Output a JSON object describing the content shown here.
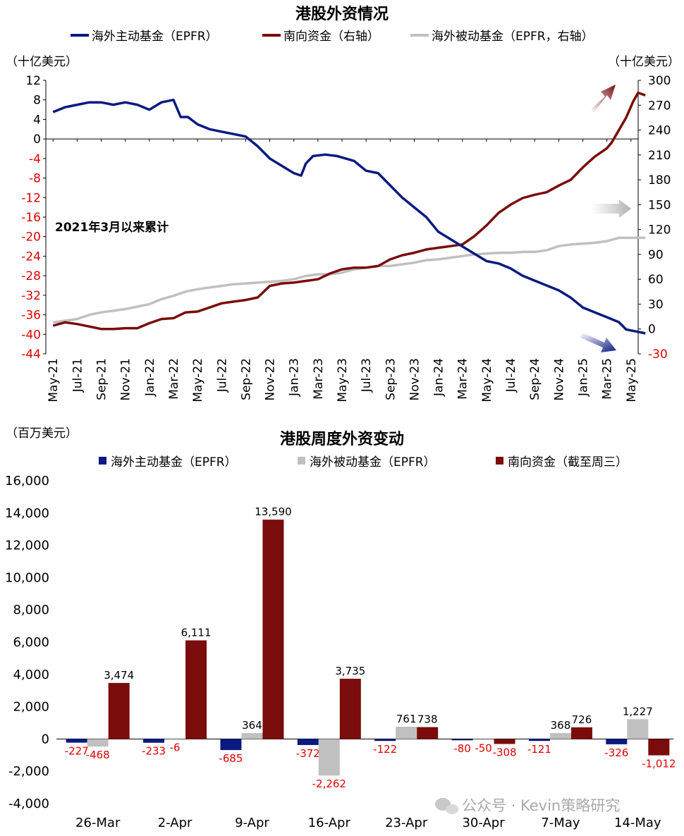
{
  "chart_data": [
    {
      "type": "line",
      "title": "港股外资情况",
      "left_unit": "（十亿美元）",
      "right_unit": "（十亿美元）",
      "annotation": "2021年3月以来累计",
      "left_ylim": [
        -44,
        12
      ],
      "left_ticks": [
        12,
        8,
        4,
        0,
        -4,
        -8,
        -12,
        -16,
        -20,
        -24,
        -28,
        -32,
        -36,
        -40,
        -44
      ],
      "right_ylim": [
        -30,
        300
      ],
      "right_ticks": [
        300,
        270,
        240,
        210,
        180,
        150,
        120,
        90,
        60,
        30,
        0,
        -30
      ],
      "x_labels": [
        "May-21",
        "Jul-21",
        "Sep-21",
        "Nov-21",
        "Jan-22",
        "Mar-22",
        "May-22",
        "Jul-22",
        "Sep-22",
        "Nov-22",
        "Jan-23",
        "Mar-23",
        "May-23",
        "Jul-23",
        "Sep-23",
        "Nov-23",
        "Jan-24",
        "Mar-24",
        "May-24",
        "Jul-24",
        "Sep-24",
        "Nov-24",
        "Jan-25",
        "Mar-25",
        "May-25"
      ],
      "series": [
        {
          "name": "海外主动基金（EPFR）",
          "axis": "left",
          "color": "#0a1a80",
          "points": [
            [
              0,
              5.5
            ],
            [
              0.5,
              6.5
            ],
            [
              1,
              7
            ],
            [
              1.5,
              7.5
            ],
            [
              2,
              7.5
            ],
            [
              2.5,
              7
            ],
            [
              3,
              7.5
            ],
            [
              3.5,
              7
            ],
            [
              4,
              6
            ],
            [
              4.5,
              7.5
            ],
            [
              5,
              8
            ],
            [
              5.3,
              4.5
            ],
            [
              5.6,
              4.5
            ],
            [
              6,
              3
            ],
            [
              6.5,
              2
            ],
            [
              7,
              1.5
            ],
            [
              7.5,
              1
            ],
            [
              8,
              0.5
            ],
            [
              8.5,
              -1.5
            ],
            [
              9,
              -4
            ],
            [
              9.5,
              -5.5
            ],
            [
              10,
              -7
            ],
            [
              10.3,
              -7.5
            ],
            [
              10.5,
              -5
            ],
            [
              10.8,
              -3.5
            ],
            [
              11.3,
              -3.2
            ],
            [
              11.8,
              -3.5
            ],
            [
              12.5,
              -4.5
            ],
            [
              13,
              -6.5
            ],
            [
              13.5,
              -7
            ],
            [
              14,
              -9.5
            ],
            [
              14.5,
              -12
            ],
            [
              15,
              -14
            ],
            [
              15.5,
              -16
            ],
            [
              16,
              -19
            ],
            [
              16.5,
              -20.5
            ],
            [
              17,
              -22
            ],
            [
              17.5,
              -23.5
            ],
            [
              18,
              -25
            ],
            [
              18.5,
              -25.5
            ],
            [
              19,
              -26.5
            ],
            [
              19.5,
              -28
            ],
            [
              20,
              -29
            ],
            [
              20.5,
              -30
            ],
            [
              21,
              -31
            ],
            [
              21.5,
              -32.5
            ],
            [
              22,
              -34.5
            ],
            [
              22.5,
              -35.5
            ],
            [
              23,
              -36.5
            ],
            [
              23.5,
              -37.5
            ],
            [
              23.8,
              -39
            ],
            [
              24.3,
              -39.5
            ],
            [
              24.6,
              -39.8
            ]
          ]
        },
        {
          "name": "南向资金（右轴）",
          "axis": "right",
          "color": "#7a0c0c",
          "points": [
            [
              0,
              4
            ],
            [
              0.5,
              8
            ],
            [
              1,
              6
            ],
            [
              1.5,
              3
            ],
            [
              2,
              0
            ],
            [
              2.5,
              0
            ],
            [
              3,
              1
            ],
            [
              3.5,
              1
            ],
            [
              4,
              7
            ],
            [
              4.5,
              12
            ],
            [
              5,
              13
            ],
            [
              5.5,
              20
            ],
            [
              6,
              21
            ],
            [
              6.5,
              26
            ],
            [
              7,
              31
            ],
            [
              7.5,
              33
            ],
            [
              8,
              35
            ],
            [
              8.5,
              38
            ],
            [
              9,
              52
            ],
            [
              9.5,
              55
            ],
            [
              10,
              56
            ],
            [
              10.5,
              58
            ],
            [
              11,
              60
            ],
            [
              11.5,
              67
            ],
            [
              12,
              72
            ],
            [
              12.5,
              74
            ],
            [
              13,
              74
            ],
            [
              13.5,
              76
            ],
            [
              14,
              84
            ],
            [
              14.5,
              89
            ],
            [
              15,
              92
            ],
            [
              15.5,
              96
            ],
            [
              16,
              98
            ],
            [
              16.5,
              100
            ],
            [
              17,
              102
            ],
            [
              17.5,
              112
            ],
            [
              18,
              125
            ],
            [
              18.5,
              140
            ],
            [
              19,
              150
            ],
            [
              19.5,
              158
            ],
            [
              20,
              162
            ],
            [
              20.5,
              165
            ],
            [
              21,
              173
            ],
            [
              21.5,
              180
            ],
            [
              22,
              195
            ],
            [
              22.5,
              208
            ],
            [
              23,
              218
            ],
            [
              23.2,
              225
            ],
            [
              23.5,
              240
            ],
            [
              23.8,
              255
            ],
            [
              24.1,
              275
            ],
            [
              24.3,
              285
            ],
            [
              24.6,
              282
            ]
          ]
        },
        {
          "name": "海外被动基金（EPFR，右轴）",
          "axis": "right",
          "color": "#c0c0c0",
          "points": [
            [
              0,
              8
            ],
            [
              0.5,
              10
            ],
            [
              1,
              12
            ],
            [
              1.5,
              17
            ],
            [
              2,
              20
            ],
            [
              2.5,
              22
            ],
            [
              3,
              24
            ],
            [
              3.5,
              27
            ],
            [
              4,
              30
            ],
            [
              4.5,
              36
            ],
            [
              5,
              40
            ],
            [
              5.5,
              45
            ],
            [
              6,
              48
            ],
            [
              6.5,
              50
            ],
            [
              7,
              52
            ],
            [
              7.5,
              54
            ],
            [
              8,
              55
            ],
            [
              8.5,
              56
            ],
            [
              9,
              57
            ],
            [
              9.5,
              58
            ],
            [
              10,
              60
            ],
            [
              10.5,
              64
            ],
            [
              11,
              66
            ],
            [
              11.5,
              66
            ],
            [
              12,
              68
            ],
            [
              12.5,
              72
            ],
            [
              13,
              74
            ],
            [
              13.5,
              76
            ],
            [
              14,
              76
            ],
            [
              14.5,
              78
            ],
            [
              15,
              80
            ],
            [
              15.5,
              83
            ],
            [
              16,
              84
            ],
            [
              16.5,
              86
            ],
            [
              17,
              88
            ],
            [
              17.5,
              90
            ],
            [
              18,
              91
            ],
            [
              18.5,
              92
            ],
            [
              19,
              92
            ],
            [
              19.5,
              93
            ],
            [
              20,
              93
            ],
            [
              20.5,
              95
            ],
            [
              21,
              100
            ],
            [
              21.5,
              102
            ],
            [
              22,
              103
            ],
            [
              22.5,
              104
            ],
            [
              23,
              106
            ],
            [
              23.5,
              110
            ],
            [
              24,
              110
            ],
            [
              24.6,
              110
            ]
          ]
        }
      ]
    },
    {
      "type": "bar",
      "title": "港股周度外资变动",
      "unit": "（百万美元）",
      "ylim": [
        -4000,
        16000
      ],
      "ticks": [
        "16,000",
        "14,000",
        "12,000",
        "10,000",
        "8,000",
        "6,000",
        "4,000",
        "2,000",
        "0",
        "-2,000",
        "-4,000"
      ],
      "categories": [
        "26-Mar",
        "2-Apr",
        "9-Apr",
        "16-Apr",
        "23-Apr",
        "30-Apr",
        "7-May",
        "14-May"
      ],
      "series": [
        {
          "name": "海外主动基金（EPFR）",
          "color": "#0a1a80",
          "values": [
            -227,
            -233,
            -685,
            -372,
            -122,
            -80,
            -121,
            -326
          ],
          "labels": [
            "-227",
            "-233",
            "-685",
            "-372",
            "-122",
            "-80",
            "-121",
            "-326"
          ]
        },
        {
          "name": "海外被动基金（EPFR）",
          "color": "#c0c0c0",
          "values": [
            -468,
            -6,
            364,
            -2262,
            761,
            -50,
            368,
            1227
          ],
          "labels": [
            "-468",
            "-6",
            "364",
            "-2,262",
            "761",
            "-50",
            "368",
            "1,227"
          ]
        },
        {
          "name": "南向资金（截至周三）",
          "color": "#7a0c0c",
          "values": [
            3474,
            6111,
            13590,
            3735,
            738,
            -308,
            726,
            -1012
          ],
          "labels": [
            "3,474",
            "6,111",
            "13,590",
            "3,735",
            "738",
            "-308",
            "726",
            "-1,012"
          ]
        }
      ]
    }
  ],
  "watermark": "公众号 · Kevin策略研究"
}
